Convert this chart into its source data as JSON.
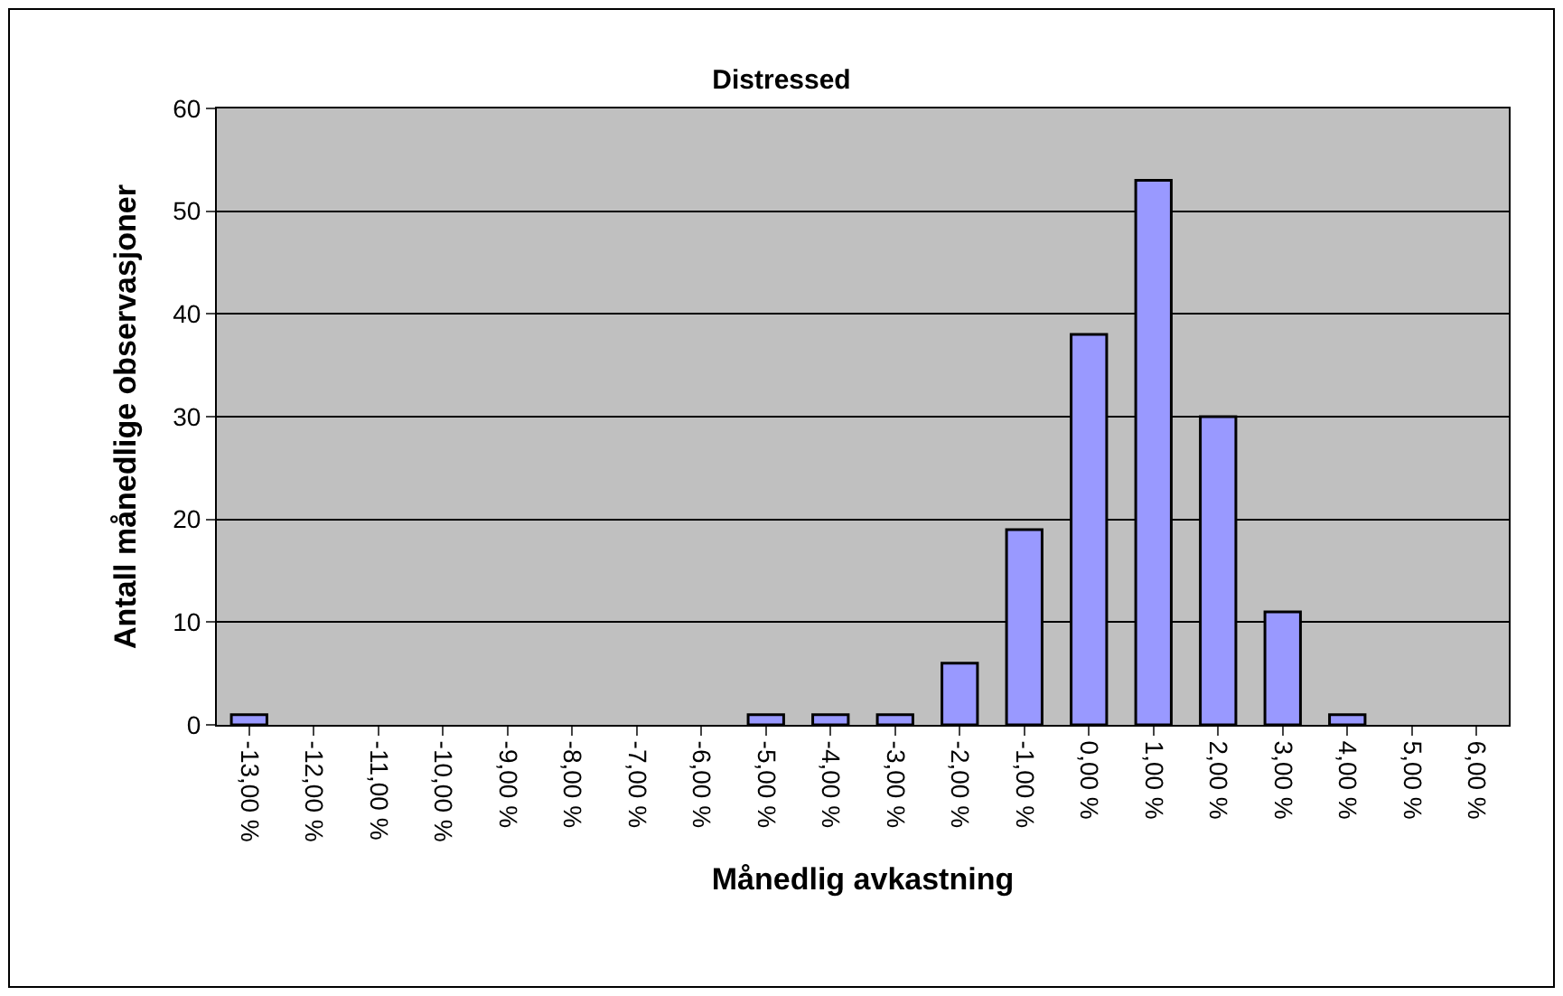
{
  "chart_data": {
    "type": "bar",
    "title": "Distressed",
    "xlabel": "Månedlig avkastning",
    "ylabel": "Antall månedlige observasjoner",
    "categories": [
      "-13,00 %",
      "-12,00 %",
      "-11,00 %",
      "-10,00 %",
      "-9,00 %",
      "-8,00 %",
      "-7,00 %",
      "-6,00 %",
      "-5,00 %",
      "-4,00 %",
      "-3,00 %",
      "-2,00 %",
      "-1,00 %",
      "0,00 %",
      "1,00 %",
      "2,00 %",
      "3,00 %",
      "4,00 %",
      "5,00 %",
      "6,00 %"
    ],
    "values": [
      1,
      0,
      0,
      0,
      0,
      0,
      0,
      0,
      1,
      1,
      1,
      6,
      19,
      38,
      53,
      30,
      11,
      1,
      0,
      0
    ],
    "color": "#9999ff",
    "ylim": [
      0,
      60
    ],
    "yticks": [
      0,
      10,
      20,
      30,
      40,
      50,
      60
    ],
    "grid": "y"
  }
}
